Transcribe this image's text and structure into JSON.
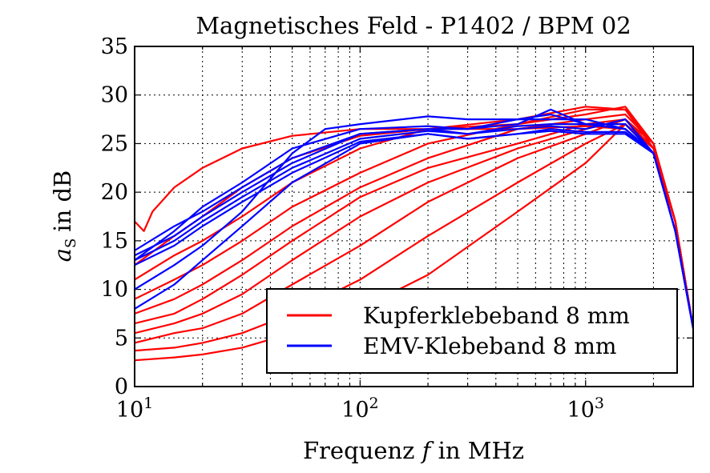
{
  "chart_data": {
    "type": "line",
    "title": "Magnetisches Feld - P1402 / BPM 02",
    "xlabel_prefix": "Frequenz",
    "xlabel_var": "f",
    "xlabel_suffix": "in MHz",
    "ylabel_var": "a",
    "ylabel_sub": "S",
    "ylabel_suffix": "in dB",
    "x_scale": "log",
    "xlim": [
      10,
      3000
    ],
    "ylim": [
      0,
      35
    ],
    "yticks": [
      0,
      5,
      10,
      15,
      20,
      25,
      30,
      35
    ],
    "xticks": [
      {
        "value": 10,
        "base": "10",
        "exp": "1"
      },
      {
        "value": 100,
        "base": "10",
        "exp": "2"
      },
      {
        "value": 1000,
        "base": "10",
        "exp": "3"
      }
    ],
    "grid": true,
    "legend_position": "lower-right",
    "colors": {
      "Kupferklebeband 8 mm": "#ff0000",
      "EMV-Klebeband 8 mm": "#0000ff"
    },
    "legend": [
      {
        "label": "Kupferklebeband 8 mm",
        "color": "#ff0000"
      },
      {
        "label": "EMV-Klebeband 8 mm",
        "color": "#0000ff"
      }
    ],
    "series": [
      {
        "group": "Kupferklebeband 8 mm",
        "x": [
          10,
          11,
          12,
          15,
          20,
          30,
          50,
          100,
          200,
          500,
          1000,
          1500,
          2000,
          2500,
          3000
        ],
        "y": [
          17,
          16,
          18,
          20.5,
          22.5,
          24.5,
          25.8,
          26.5,
          26.5,
          26.5,
          26.8,
          26.5,
          24,
          17,
          6
        ]
      },
      {
        "group": "Kupferklebeband 8 mm",
        "x": [
          10,
          15,
          20,
          30,
          50,
          100,
          200,
          500,
          1000,
          1500,
          2000,
          2500,
          3000
        ],
        "y": [
          12.5,
          15.5,
          17.5,
          20.5,
          23.5,
          25.8,
          26.5,
          27,
          28.5,
          28.5,
          24.5,
          17,
          6
        ]
      },
      {
        "group": "Kupferklebeband 8 mm",
        "x": [
          10,
          15,
          20,
          30,
          50,
          100,
          200,
          500,
          1000,
          1500,
          2000,
          2500,
          3000
        ],
        "y": [
          11,
          13.5,
          15,
          17.5,
          21,
          24.5,
          26.5,
          27.5,
          28.8,
          28.5,
          25,
          17,
          6
        ]
      },
      {
        "group": "Kupferklebeband 8 mm",
        "x": [
          10,
          15,
          20,
          30,
          50,
          100,
          200,
          500,
          1000,
          1500,
          2000,
          2500,
          3000
        ],
        "y": [
          9,
          11,
          12.5,
          15,
          18.5,
          22,
          25,
          27,
          28,
          28.8,
          25,
          17,
          6
        ]
      },
      {
        "group": "Kupferklebeband 8 mm",
        "x": [
          10,
          15,
          20,
          30,
          50,
          100,
          200,
          500,
          1000,
          1500,
          2000,
          2500,
          3000
        ],
        "y": [
          7.5,
          9,
          10.5,
          13,
          16.5,
          20.5,
          23.5,
          26.5,
          27.5,
          28,
          25,
          17,
          6
        ]
      },
      {
        "group": "Kupferklebeband 8 mm",
        "x": [
          10,
          15,
          20,
          30,
          50,
          100,
          200,
          500,
          1000,
          1500,
          2000,
          2500,
          3000
        ],
        "y": [
          6.5,
          7.5,
          9,
          11.5,
          15,
          19.5,
          22.5,
          25,
          27,
          27.5,
          25,
          17,
          6
        ]
      },
      {
        "group": "Kupferklebeband 8 mm",
        "x": [
          10,
          15,
          20,
          30,
          50,
          100,
          200,
          500,
          1000,
          1500,
          2000,
          2500,
          3000
        ],
        "y": [
          5.5,
          6.5,
          7.5,
          9.5,
          13,
          17.5,
          21,
          24.5,
          26.5,
          27.5,
          24.5,
          17,
          6
        ]
      },
      {
        "group": "Kupferklebeband 8 mm",
        "x": [
          10,
          15,
          20,
          30,
          50,
          100,
          200,
          500,
          1000,
          1500,
          2000,
          2500,
          3000
        ],
        "y": [
          4.5,
          5.5,
          6,
          7.5,
          10.5,
          14.5,
          19,
          23.5,
          26,
          27.5,
          24.5,
          17,
          6
        ]
      },
      {
        "group": "Kupferklebeband 8 mm",
        "x": [
          10,
          15,
          20,
          30,
          50,
          100,
          200,
          500,
          1000,
          1500,
          2000,
          2500,
          3000
        ],
        "y": [
          3.7,
          4,
          4.5,
          5.5,
          7.5,
          11,
          15.5,
          21,
          25,
          27,
          24.5,
          17,
          6
        ]
      },
      {
        "group": "Kupferklebeband 8 mm",
        "x": [
          10,
          15,
          20,
          30,
          50,
          100,
          200,
          500,
          1000,
          1500,
          2000,
          2500,
          3000
        ],
        "y": [
          2.7,
          3,
          3.3,
          4,
          5.5,
          8,
          11.5,
          18,
          23,
          27,
          24,
          17,
          6
        ]
      },
      {
        "group": "EMV-Klebeband 8 mm",
        "x": [
          10,
          15,
          20,
          30,
          50,
          100,
          200,
          300,
          500,
          700,
          1000,
          1500,
          2000,
          2500,
          3000
        ],
        "y": [
          13,
          16,
          18.5,
          21,
          24.5,
          26.5,
          26.8,
          26.5,
          27,
          28.5,
          27,
          26.5,
          24,
          16,
          6
        ]
      },
      {
        "group": "EMV-Klebeband 8 mm",
        "x": [
          10,
          15,
          20,
          30,
          50,
          100,
          200,
          300,
          500,
          700,
          1000,
          1500,
          2000,
          2500,
          3000
        ],
        "y": [
          14,
          16.5,
          18,
          20.5,
          23.5,
          26,
          26.5,
          26.5,
          27.5,
          27.5,
          27.5,
          26.5,
          24,
          16,
          6
        ]
      },
      {
        "group": "EMV-Klebeband 8 mm",
        "x": [
          10,
          15,
          20,
          30,
          50,
          100,
          200,
          300,
          500,
          700,
          1000,
          1500,
          2000,
          2500,
          3000
        ],
        "y": [
          13.5,
          15.5,
          17.5,
          20,
          23,
          26,
          26.5,
          26,
          26.8,
          27,
          27,
          27,
          24,
          16,
          6
        ]
      },
      {
        "group": "EMV-Klebeband 8 mm",
        "x": [
          10,
          15,
          20,
          30,
          50,
          100,
          200,
          300,
          500,
          700,
          1000,
          1500,
          2000,
          2500,
          3000
        ],
        "y": [
          13,
          15,
          17,
          19.5,
          22.5,
          25.5,
          26.3,
          26,
          26.5,
          26.8,
          26.5,
          27.5,
          24,
          16,
          6
        ]
      },
      {
        "group": "EMV-Klebeband 8 mm",
        "x": [
          10,
          15,
          20,
          30,
          50,
          100,
          200,
          300,
          500,
          700,
          1000,
          1500,
          2000,
          2500,
          3000
        ],
        "y": [
          12.5,
          14.5,
          16.5,
          19,
          22,
          25.2,
          26,
          25.5,
          26,
          26.5,
          26.2,
          26.2,
          24,
          16,
          6
        ]
      },
      {
        "group": "EMV-Klebeband 8 mm",
        "x": [
          10,
          15,
          20,
          30,
          50,
          100,
          200,
          300,
          500,
          700,
          1000,
          1500,
          2000,
          2500,
          3000
        ],
        "y": [
          8,
          10.5,
          13,
          16.5,
          21,
          25,
          26,
          25.5,
          26,
          26.3,
          26,
          26,
          24,
          16,
          6
        ]
      },
      {
        "group": "EMV-Klebeband 8 mm",
        "x": [
          10,
          15,
          20,
          30,
          50,
          70,
          100,
          200,
          300,
          500,
          700,
          1000,
          1500,
          2000,
          2500,
          3000
        ],
        "y": [
          10,
          12.5,
          14.5,
          18,
          24,
          26.5,
          27,
          27.8,
          27.5,
          27.5,
          28,
          27,
          26.5,
          24,
          16,
          6
        ]
      }
    ]
  }
}
